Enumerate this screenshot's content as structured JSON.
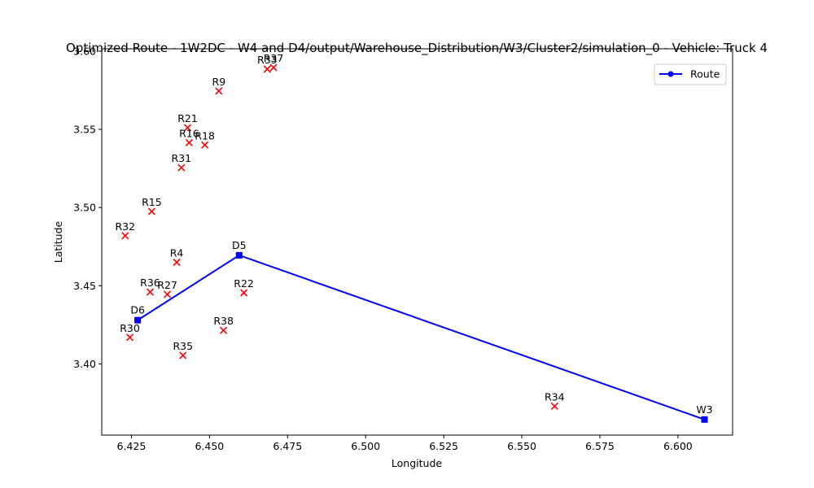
{
  "chart_data": {
    "type": "scatter",
    "title": "Optimized Route - 1W2DC - W4 and D4/output/Warehouse_Distribution/W3/Cluster2/simulation_0 - Vehicle: Truck 4",
    "xlabel": "Longitude",
    "ylabel": "Latitude",
    "xlim": [
      6.4155,
      6.6175
    ],
    "ylim": [
      3.3545,
      3.6015
    ],
    "xticks": [
      "6.425",
      "6.450",
      "6.475",
      "6.500",
      "6.525",
      "6.550",
      "6.575",
      "6.600"
    ],
    "yticks": [
      "3.40",
      "3.45",
      "3.50",
      "3.55",
      "3.60"
    ],
    "grid": false,
    "legend": {
      "placement": "top-right",
      "entries": [
        "Route"
      ]
    },
    "colors": {
      "route": "#0000ff",
      "points": "#ff0000"
    },
    "route": {
      "name": "Route",
      "points": [
        {
          "label": "W3",
          "x": 6.6085,
          "y": 3.3645
        },
        {
          "label": "D5",
          "x": 6.4595,
          "y": 3.4695
        },
        {
          "label": "D6",
          "x": 6.427,
          "y": 3.428
        }
      ]
    },
    "points": [
      {
        "label": "R37",
        "x": 6.4705,
        "y": 3.5895
      },
      {
        "label": "R33",
        "x": 6.4685,
        "y": 3.5885
      },
      {
        "label": "R9",
        "x": 6.453,
        "y": 3.5745
      },
      {
        "label": "R21",
        "x": 6.443,
        "y": 3.551
      },
      {
        "label": "R16",
        "x": 6.4435,
        "y": 3.5415
      },
      {
        "label": "R18",
        "x": 6.4485,
        "y": 3.54
      },
      {
        "label": "R31",
        "x": 6.441,
        "y": 3.5255
      },
      {
        "label": "R15",
        "x": 6.4315,
        "y": 3.4975
      },
      {
        "label": "R32",
        "x": 6.423,
        "y": 3.482
      },
      {
        "label": "R4",
        "x": 6.4395,
        "y": 3.465
      },
      {
        "label": "R36",
        "x": 6.431,
        "y": 3.446
      },
      {
        "label": "R27",
        "x": 6.4365,
        "y": 3.4445
      },
      {
        "label": "R22",
        "x": 6.461,
        "y": 3.4455
      },
      {
        "label": "R30",
        "x": 6.4245,
        "y": 3.417
      },
      {
        "label": "R38",
        "x": 6.4545,
        "y": 3.4215
      },
      {
        "label": "R35",
        "x": 6.4415,
        "y": 3.4055
      },
      {
        "label": "R34",
        "x": 6.5605,
        "y": 3.373
      }
    ]
  }
}
